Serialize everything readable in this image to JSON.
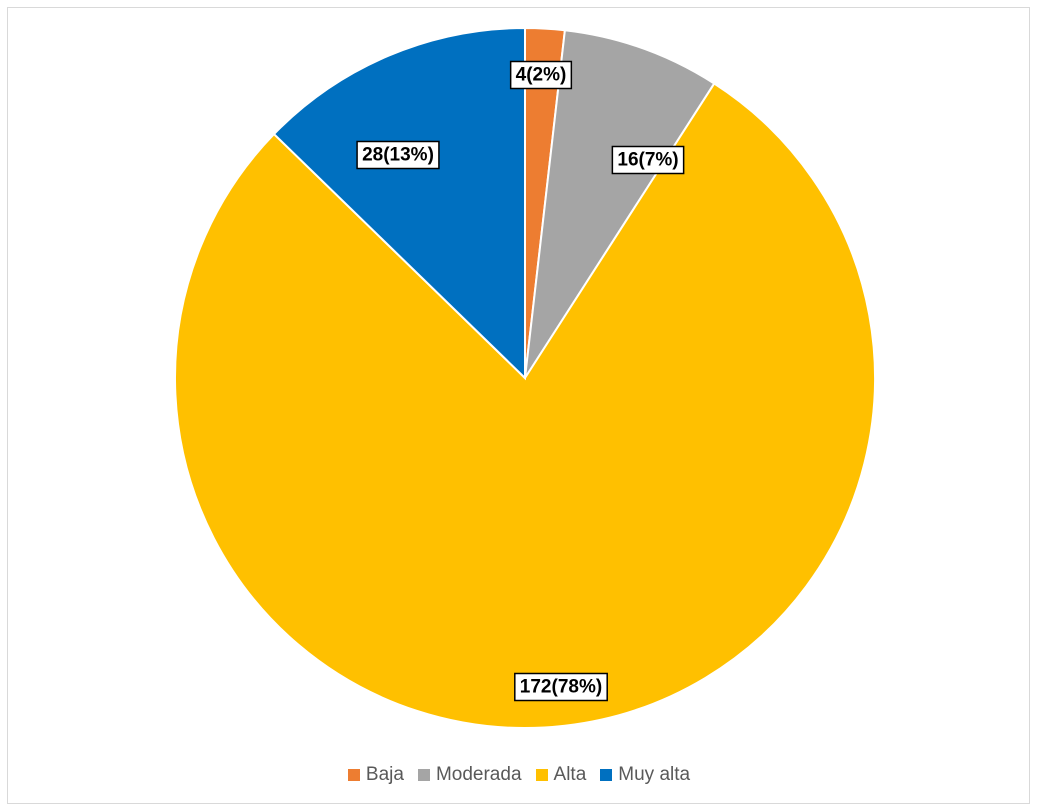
{
  "chart_data": {
    "type": "pie",
    "title": "",
    "start_angle_deg": 0,
    "direction": "clockwise",
    "legend_position": "bottom",
    "slices": [
      {
        "name": "Baja",
        "value": 4,
        "percent": 2,
        "label": "4(2%)",
        "color": "#ED7D31"
      },
      {
        "name": "Moderada",
        "value": 16,
        "percent": 7,
        "label": "16(7%)",
        "color": "#A5A5A5"
      },
      {
        "name": "Alta",
        "value": 172,
        "percent": 78,
        "label": "172(78%)",
        "color": "#FFC000"
      },
      {
        "name": "Muy alta",
        "value": 28,
        "percent": 13,
        "label": "28(13%)",
        "color": "#0070C0"
      }
    ]
  }
}
